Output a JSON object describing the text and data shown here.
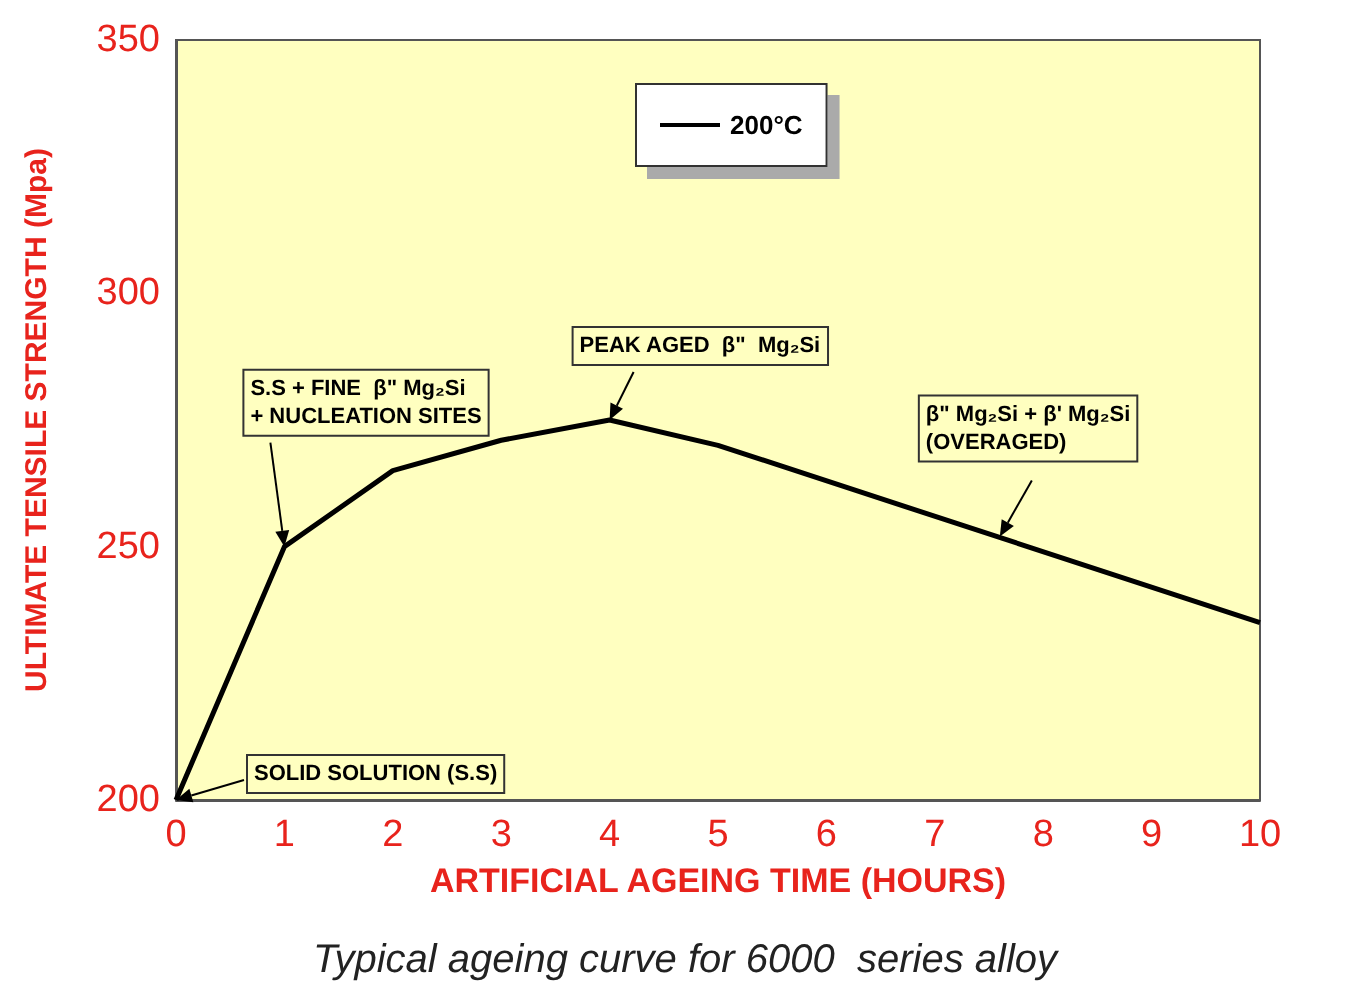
{
  "chart_data": {
    "type": "line",
    "xlabel": "ARTIFICIAL AGEING TIME (HOURS)",
    "ylabel": "ULTIMATE TENSILE STRENGTH (Mpa)",
    "x": [
      0,
      1,
      2,
      3,
      4,
      5,
      10
    ],
    "series": [
      {
        "name": "200°C",
        "color": "#000000",
        "values": [
          200,
          250,
          265,
          271,
          275,
          270,
          235
        ]
      }
    ],
    "xlim": [
      0,
      10
    ],
    "xticks": [
      0,
      1,
      2,
      3,
      4,
      5,
      6,
      7,
      8,
      9,
      10
    ],
    "ylim": [
      200,
      350
    ],
    "yticks": [
      200,
      250,
      300,
      350
    ],
    "grid": false,
    "marker": "none",
    "line_style": "solid",
    "legend": "top",
    "annotations": [
      {
        "text": "SOLID SOLUTION (S.S)",
        "x": 0,
        "y": 200
      },
      {
        "text": "S.S + FINE  β\" Mg₂Si\n+ NUCLEATION SITES",
        "x": 1,
        "y": 250
      },
      {
        "text": "PEAK AGED  β\"  Mg₂Si",
        "x": 4,
        "y": 275
      },
      {
        "text": "β\" Mg₂Si + β' Mg₂Si\n(OVERAGED)",
        "x": 7.6,
        "y": 252
      },
      "Typical ageing curve for 6000  series alloy"
    ]
  }
}
